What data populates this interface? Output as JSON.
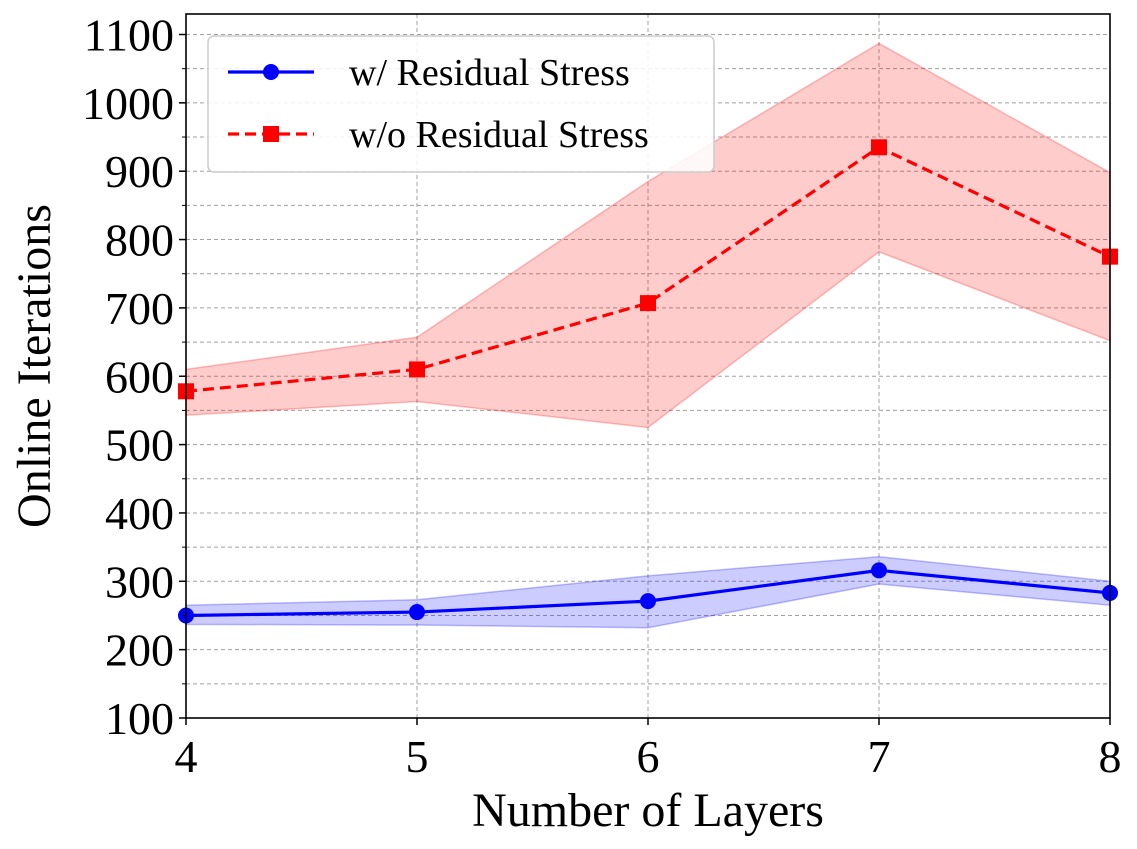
{
  "chart_data": {
    "type": "line",
    "title": "",
    "xlabel": "Number of Layers",
    "ylabel": "Online Iterations",
    "x": [
      4,
      5,
      6,
      7,
      8
    ],
    "xlim": [
      4,
      8
    ],
    "ylim": [
      100,
      1130
    ],
    "xticks": [
      "4",
      "5",
      "6",
      "7",
      "8"
    ],
    "yticks": [
      "100",
      "200",
      "300",
      "400",
      "500",
      "600",
      "700",
      "800",
      "900",
      "1000",
      "1100"
    ],
    "grid": true,
    "legend_position": "top-left",
    "series": [
      {
        "name": "w/ Residual Stress",
        "color": "#0000ff",
        "fill_color": "#0000ff",
        "line_style": "solid",
        "marker": "circle",
        "values": [
          250,
          255,
          271,
          316,
          283
        ],
        "lower": [
          237,
          236,
          232,
          296,
          265
        ],
        "upper": [
          265,
          273,
          308,
          336,
          300
        ]
      },
      {
        "name": "w/o Residual Stress",
        "color": "#ff0000",
        "fill_color": "#ff0000",
        "line_style": "dashed",
        "marker": "square",
        "values": [
          578,
          610,
          707,
          935,
          775
        ],
        "lower": [
          543,
          563,
          525,
          782,
          652
        ],
        "upper": [
          610,
          657,
          885,
          1087,
          898
        ]
      }
    ]
  }
}
